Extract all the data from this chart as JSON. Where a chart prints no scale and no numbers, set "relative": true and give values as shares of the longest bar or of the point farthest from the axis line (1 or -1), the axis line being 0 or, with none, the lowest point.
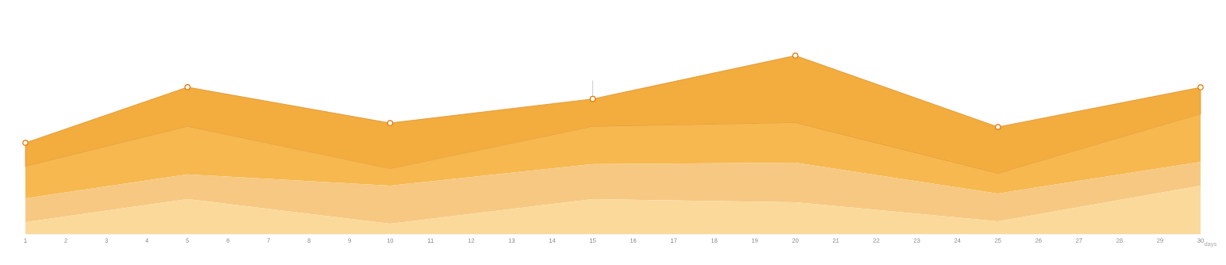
{
  "chart_data": {
    "type": "area",
    "relative": true,
    "stacked": true,
    "xlabel": "days",
    "x": [
      1,
      5,
      10,
      15,
      20,
      25,
      30
    ],
    "xlim": [
      1,
      30
    ],
    "xticks": [
      1,
      2,
      3,
      4,
      5,
      6,
      7,
      8,
      9,
      10,
      11,
      12,
      13,
      14,
      15,
      16,
      17,
      18,
      19,
      20,
      21,
      22,
      23,
      24,
      25,
      26,
      27,
      28,
      29,
      30
    ],
    "series": [
      {
        "color": "#fbd99b",
        "values": [
          0.067,
          0.196,
          0.058,
          0.196,
          0.178,
          0.071,
          0.271
        ]
      },
      {
        "color": "#f7c882",
        "values": [
          0.133,
          0.138,
          0.213,
          0.196,
          0.222,
          0.156,
          0.133
        ]
      },
      {
        "color": "#f6b84f",
        "values": [
          0.178,
          0.267,
          0.093,
          0.209,
          0.222,
          0.111,
          0.267
        ]
      },
      {
        "color": "#f3ac3e",
        "values": [
          0.133,
          0.222,
          0.258,
          0.156,
          0.378,
          0.262,
          0.151
        ],
        "marker": "circle"
      }
    ],
    "ref_lines": [
      {
        "axis": "x",
        "value": 15,
        "color": "#cccccc"
      }
    ]
  }
}
